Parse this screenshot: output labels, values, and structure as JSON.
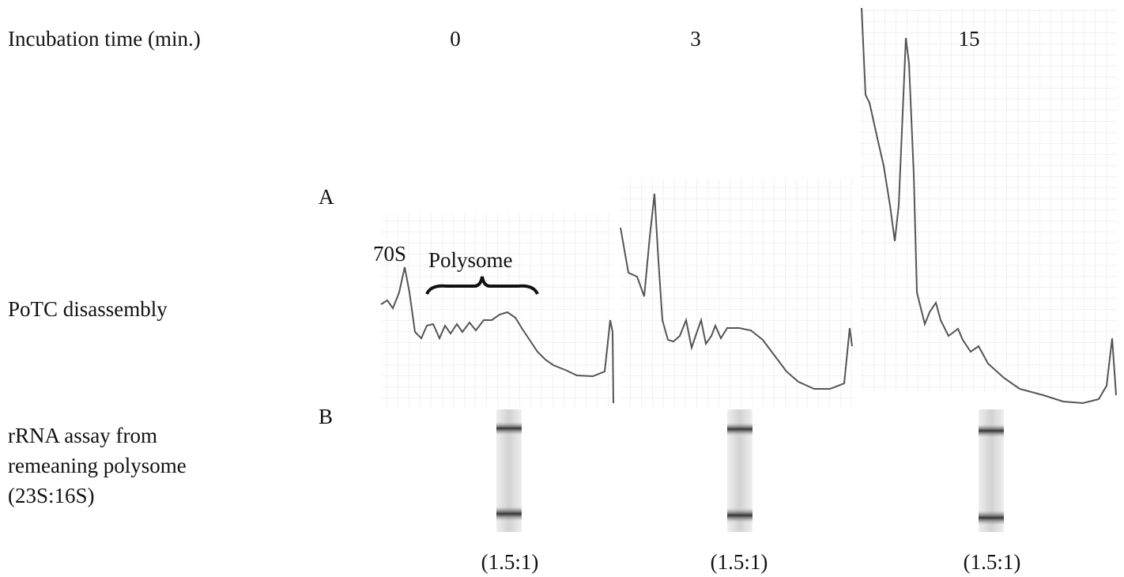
{
  "header": {
    "label": "Incubation time (min.)",
    "times": [
      0,
      3,
      15
    ]
  },
  "panel_a": {
    "label": "A",
    "row_label": "PoTC disassembly",
    "annotations": [
      "70S",
      "Polysome"
    ]
  },
  "panel_b": {
    "label": "B",
    "row_label": [
      "rRNA assay from",
      "remeaning polysome",
      "(23S:16S)"
    ],
    "ratios": [
      "(1.5:1)",
      "(1.5:1)",
      "(1.5:1)"
    ]
  }
}
